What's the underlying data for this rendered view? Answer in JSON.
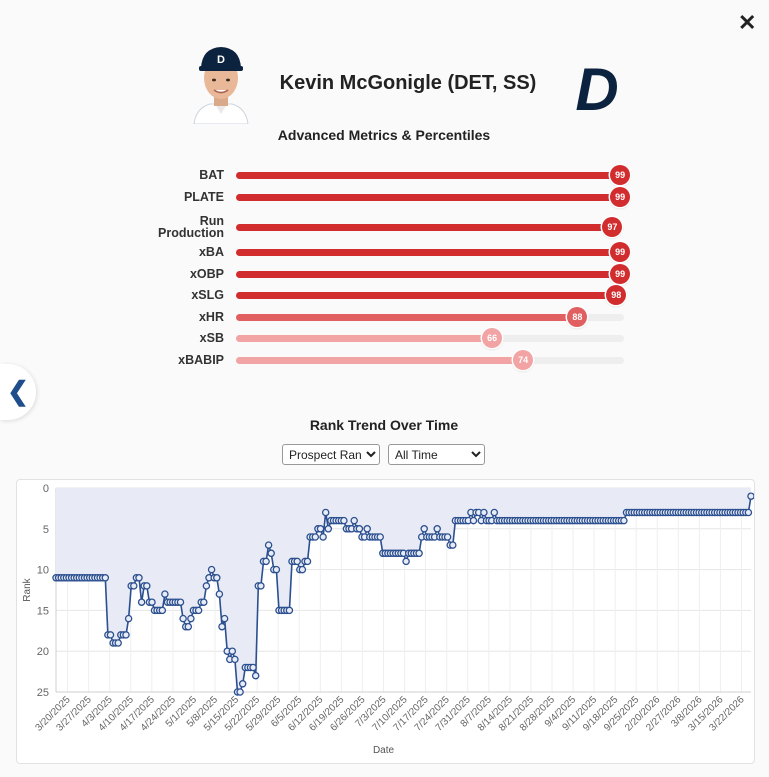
{
  "modal": {
    "close_label": "✕",
    "prev_label": "❮"
  },
  "player": {
    "name": "Kevin McGonigle (DET, SS)",
    "headshot_icon": "player-headshot-icon",
    "team_logo_icon": "detroit-tigers-logo-icon",
    "team_color": "#0c2340"
  },
  "metrics": {
    "title": "Advanced Metrics & Percentiles",
    "items": [
      {
        "label": "BAT",
        "value": 99
      },
      {
        "label": "PLATE",
        "value": 99
      },
      {
        "label": "Run\nProduction",
        "value": 97
      },
      {
        "label": "xBA",
        "value": 99
      },
      {
        "label": "xOBP",
        "value": 99
      },
      {
        "label": "xSLG",
        "value": 98
      },
      {
        "label": "xHR",
        "value": 88
      },
      {
        "label": "xSB",
        "value": 66
      },
      {
        "label": "xBABIP",
        "value": 74
      }
    ],
    "colors": {
      "high": "#d12d2f",
      "mid": "#e15f60",
      "low": "#f2a3a4"
    }
  },
  "trend": {
    "title": "Rank Trend Over Time",
    "rank_type": {
      "selected": "Prospect Rank",
      "options": [
        "Prospect Rank"
      ]
    },
    "period": {
      "selected": "All Time",
      "options": [
        "All Time"
      ]
    }
  },
  "chart_data": {
    "type": "line",
    "xlabel": "Date",
    "ylabel": "Rank",
    "ylim": [
      25,
      0
    ],
    "y_inverted": true,
    "yticks": [
      0,
      5,
      10,
      15,
      20,
      25
    ],
    "x_tick_labels": [
      "3/20/2025",
      "3/27/2025",
      "4/3/2025",
      "4/10/2025",
      "4/17/2025",
      "4/24/2025",
      "5/1/2025",
      "5/8/2025",
      "5/15/2025",
      "5/22/2025",
      "5/29/2025",
      "6/5/2025",
      "6/12/2025",
      "6/19/2025",
      "6/26/2025",
      "7/3/2025",
      "7/10/2025",
      "7/17/2025",
      "7/24/2025",
      "7/31/2025",
      "8/7/2025",
      "8/14/2025",
      "8/21/2025",
      "8/28/2025",
      "9/4/2025",
      "9/11/2025",
      "9/18/2025",
      "9/25/2025",
      "2/20/2026",
      "2/27/2026",
      "3/8/2026",
      "3/15/2026",
      "3/22/2026"
    ],
    "line_color": "#2b4f8f",
    "fill_color": "#e8ebf5",
    "grid": true,
    "series": [
      {
        "values": [
          11,
          11,
          11,
          11,
          11,
          11,
          11,
          11,
          11,
          11,
          11,
          11,
          11,
          11,
          11,
          11,
          11,
          11,
          11,
          11,
          18,
          18,
          19,
          19,
          19,
          18,
          18,
          18,
          16,
          12,
          12,
          11,
          11,
          14,
          12,
          12,
          14,
          14,
          15,
          15,
          15,
          15,
          13,
          14,
          14,
          14,
          14,
          14,
          14,
          16,
          17,
          17,
          16,
          15,
          15,
          15,
          14,
          14,
          12,
          11,
          10,
          11,
          11,
          13,
          17,
          16,
          20,
          21,
          20,
          21,
          25,
          25,
          24,
          22,
          22,
          22,
          22,
          23,
          12,
          12,
          9,
          9,
          7,
          8,
          10,
          10,
          15,
          15,
          15,
          15,
          15,
          9,
          9,
          9,
          10,
          10,
          9,
          9,
          6,
          6,
          6,
          5,
          5,
          6,
          3,
          5,
          4,
          4,
          4,
          4,
          4,
          4,
          5,
          5,
          5,
          4,
          5,
          5,
          6,
          6,
          5,
          6,
          6,
          6,
          6,
          6,
          8,
          8,
          8,
          8,
          8,
          8,
          8,
          8,
          8,
          9,
          8,
          8,
          8,
          8,
          8,
          6,
          5,
          6,
          6,
          6,
          6,
          5,
          6,
          6,
          6,
          6,
          7,
          7,
          4,
          4,
          4,
          4,
          4,
          4,
          3,
          4,
          3,
          3,
          4,
          3,
          4,
          4,
          4,
          3,
          4,
          4,
          4,
          4,
          4,
          4,
          4,
          4,
          4,
          4,
          4,
          4,
          4,
          4,
          4,
          4,
          4,
          4,
          4,
          4,
          4,
          4,
          4,
          4,
          4,
          4,
          4,
          4,
          4,
          4,
          4,
          4,
          4,
          4,
          4,
          4,
          4,
          4,
          4,
          4,
          4,
          4,
          4,
          4,
          4,
          4,
          4,
          4,
          4,
          4,
          3,
          3,
          3,
          3,
          3,
          3,
          3,
          3,
          3,
          3,
          3,
          3,
          3,
          3,
          3,
          3,
          3,
          3,
          3,
          3,
          3,
          3,
          3,
          3,
          3,
          3,
          3,
          3,
          3,
          3,
          3,
          3,
          3,
          3,
          3,
          3,
          3,
          3,
          3,
          3,
          3,
          3,
          3,
          3,
          3,
          3,
          3,
          3,
          1
        ]
      }
    ]
  }
}
